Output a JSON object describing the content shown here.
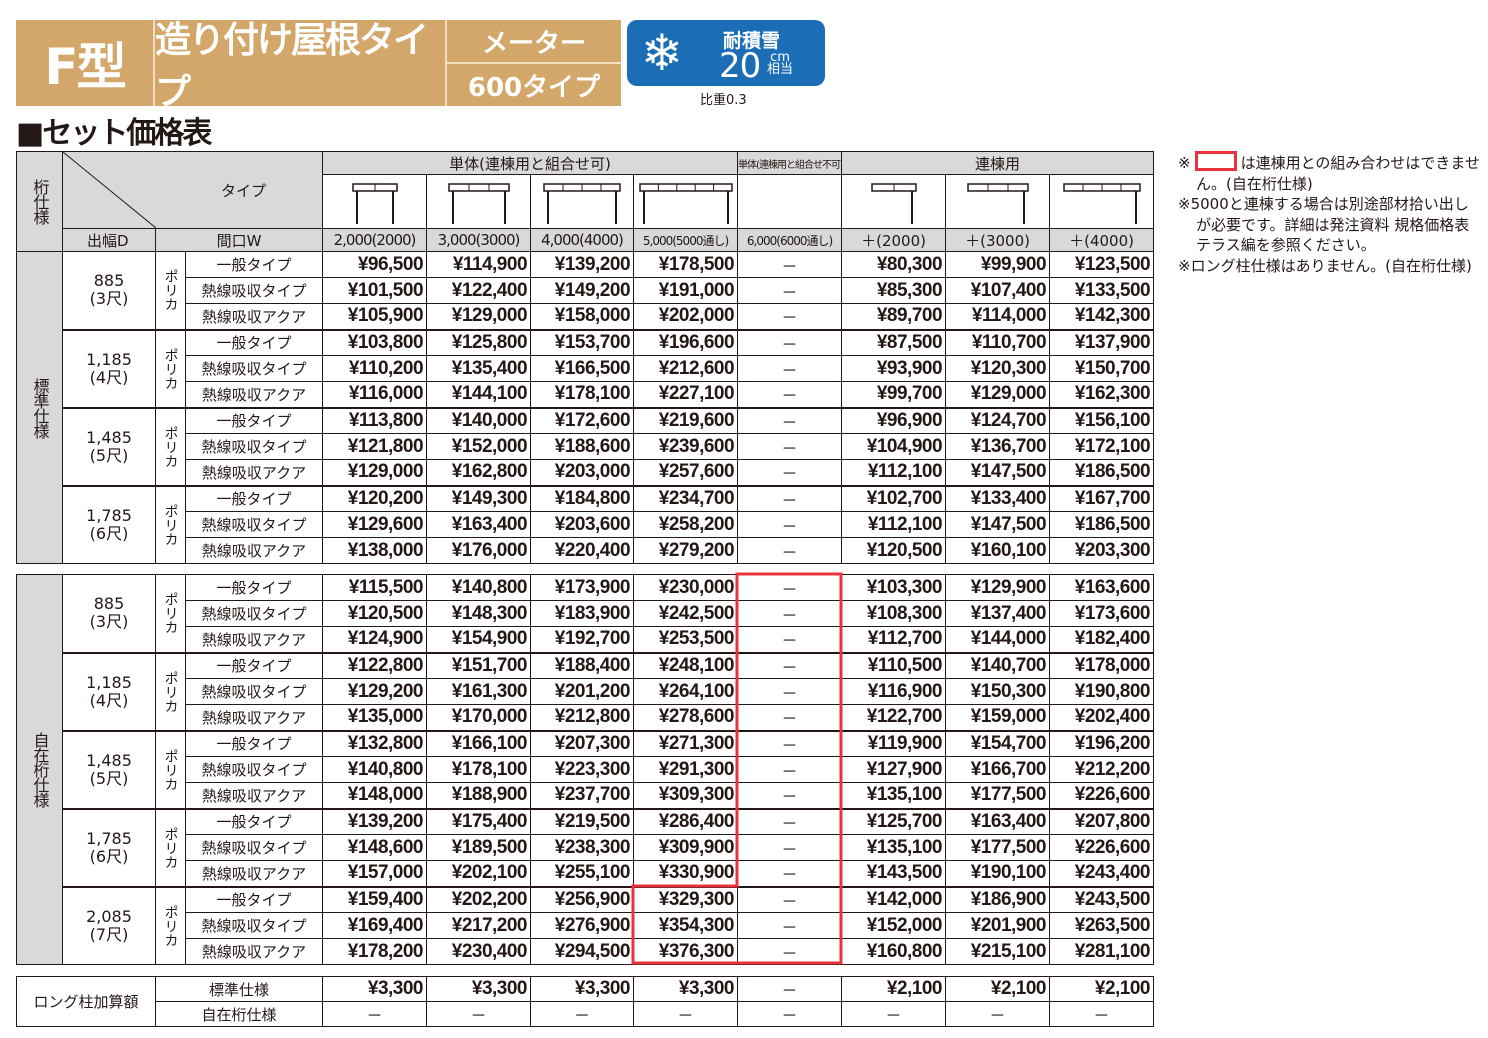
{
  "header": {
    "type_label": "F型",
    "title": "造り付け屋根タイプ",
    "meter": "メーター",
    "subtype": "600タイプ",
    "snow": {
      "icon": "snowflake-icon",
      "label": "耐積雪",
      "value": "20",
      "unit": "cm",
      "unit_note": "相当",
      "color": "#1b6db5"
    },
    "gravity": "比重0.3",
    "color": "#d3a769"
  },
  "section_title": "■セット価格表",
  "table": {
    "spec_header": "桁仕様",
    "type_header": "タイプ",
    "depth_header": "出幅D",
    "width_header": "間口W",
    "groups": [
      "単体(連棟用と組合せ可)",
      "単体(連棟用と組合せ不可)",
      "連棟用"
    ],
    "widths": [
      "2,000(2000)",
      "3,000(3000)",
      "4,000(4000)",
      "5,000(5000通し)",
      "6,000(6000通し)",
      "＋(2000)",
      "＋(3000)",
      "＋(4000)"
    ],
    "material": "ポリカ",
    "type_names": [
      "一般タイプ",
      "熱線吸収タイプ",
      "熱線吸収アクア"
    ],
    "dash": "－",
    "sections": [
      {
        "label": "標準仕様",
        "rows": [
          {
            "depth": "885",
            "shaku": "(3尺)",
            "prices": [
              [
                "¥96,500",
                "¥114,900",
                "¥139,200",
                "¥178,500",
                "－",
                "¥80,300",
                "¥99,900",
                "¥123,500"
              ],
              [
                "¥101,500",
                "¥122,400",
                "¥149,200",
                "¥191,000",
                "－",
                "¥85,300",
                "¥107,400",
                "¥133,500"
              ],
              [
                "¥105,900",
                "¥129,000",
                "¥158,000",
                "¥202,000",
                "－",
                "¥89,700",
                "¥114,000",
                "¥142,300"
              ]
            ]
          },
          {
            "depth": "1,185",
            "shaku": "(4尺)",
            "prices": [
              [
                "¥103,800",
                "¥125,800",
                "¥153,700",
                "¥196,600",
                "－",
                "¥87,500",
                "¥110,700",
                "¥137,900"
              ],
              [
                "¥110,200",
                "¥135,400",
                "¥166,500",
                "¥212,600",
                "－",
                "¥93,900",
                "¥120,300",
                "¥150,700"
              ],
              [
                "¥116,000",
                "¥144,100",
                "¥178,100",
                "¥227,100",
                "－",
                "¥99,700",
                "¥129,000",
                "¥162,300"
              ]
            ]
          },
          {
            "depth": "1,485",
            "shaku": "(5尺)",
            "prices": [
              [
                "¥113,800",
                "¥140,000",
                "¥172,600",
                "¥219,600",
                "－",
                "¥96,900",
                "¥124,700",
                "¥156,100"
              ],
              [
                "¥121,800",
                "¥152,000",
                "¥188,600",
                "¥239,600",
                "－",
                "¥104,900",
                "¥136,700",
                "¥172,100"
              ],
              [
                "¥129,000",
                "¥162,800",
                "¥203,000",
                "¥257,600",
                "－",
                "¥112,100",
                "¥147,500",
                "¥186,500"
              ]
            ]
          },
          {
            "depth": "1,785",
            "shaku": "(6尺)",
            "prices": [
              [
                "¥120,200",
                "¥149,300",
                "¥184,800",
                "¥234,700",
                "－",
                "¥102,700",
                "¥133,400",
                "¥167,700"
              ],
              [
                "¥129,600",
                "¥163,400",
                "¥203,600",
                "¥258,200",
                "－",
                "¥112,100",
                "¥147,500",
                "¥186,500"
              ],
              [
                "¥138,000",
                "¥176,000",
                "¥220,400",
                "¥279,200",
                "－",
                "¥120,500",
                "¥160,100",
                "¥203,300"
              ]
            ]
          }
        ]
      },
      {
        "label": "自在桁仕様",
        "rows": [
          {
            "depth": "885",
            "shaku": "(3尺)",
            "prices": [
              [
                "¥115,500",
                "¥140,800",
                "¥173,900",
                "¥230,000",
                "－",
                "¥103,300",
                "¥129,900",
                "¥163,600"
              ],
              [
                "¥120,500",
                "¥148,300",
                "¥183,900",
                "¥242,500",
                "－",
                "¥108,300",
                "¥137,400",
                "¥173,600"
              ],
              [
                "¥124,900",
                "¥154,900",
                "¥192,700",
                "¥253,500",
                "－",
                "¥112,700",
                "¥144,000",
                "¥182,400"
              ]
            ]
          },
          {
            "depth": "1,185",
            "shaku": "(4尺)",
            "prices": [
              [
                "¥122,800",
                "¥151,700",
                "¥188,400",
                "¥248,100",
                "－",
                "¥110,500",
                "¥140,700",
                "¥178,000"
              ],
              [
                "¥129,200",
                "¥161,300",
                "¥201,200",
                "¥264,100",
                "－",
                "¥116,900",
                "¥150,300",
                "¥190,800"
              ],
              [
                "¥135,000",
                "¥170,000",
                "¥212,800",
                "¥278,600",
                "－",
                "¥122,700",
                "¥159,000",
                "¥202,400"
              ]
            ]
          },
          {
            "depth": "1,485",
            "shaku": "(5尺)",
            "prices": [
              [
                "¥132,800",
                "¥166,100",
                "¥207,300",
                "¥271,300",
                "－",
                "¥119,900",
                "¥154,700",
                "¥196,200"
              ],
              [
                "¥140,800",
                "¥178,100",
                "¥223,300",
                "¥291,300",
                "－",
                "¥127,900",
                "¥166,700",
                "¥212,200"
              ],
              [
                "¥148,000",
                "¥188,900",
                "¥237,700",
                "¥309,300",
                "－",
                "¥135,100",
                "¥177,500",
                "¥226,600"
              ]
            ]
          },
          {
            "depth": "1,785",
            "shaku": "(6尺)",
            "prices": [
              [
                "¥139,200",
                "¥175,400",
                "¥219,500",
                "¥286,400",
                "－",
                "¥125,700",
                "¥163,400",
                "¥207,800"
              ],
              [
                "¥148,600",
                "¥189,500",
                "¥238,300",
                "¥309,900",
                "－",
                "¥135,100",
                "¥177,500",
                "¥226,600"
              ],
              [
                "¥157,000",
                "¥202,100",
                "¥255,100",
                "¥330,900",
                "－",
                "¥143,500",
                "¥190,100",
                "¥243,400"
              ]
            ]
          },
          {
            "depth": "2,085",
            "shaku": "(7尺)",
            "prices": [
              [
                "¥159,400",
                "¥202,200",
                "¥256,900",
                "¥329,300",
                "－",
                "¥142,000",
                "¥186,900",
                "¥243,500"
              ],
              [
                "¥169,400",
                "¥217,200",
                "¥276,900",
                "¥354,300",
                "－",
                "¥152,000",
                "¥201,900",
                "¥263,500"
              ],
              [
                "¥178,200",
                "¥230,400",
                "¥294,500",
                "¥376,300",
                "－",
                "¥160,800",
                "¥215,100",
                "¥281,100"
              ]
            ]
          }
        ]
      }
    ],
    "long_pillar": {
      "label": "ロング柱加算額",
      "rows": [
        {
          "name": "標準仕様",
          "prices": [
            "¥3,300",
            "¥3,300",
            "¥3,300",
            "¥3,300",
            "－",
            "¥2,100",
            "¥2,100",
            "¥2,100"
          ]
        },
        {
          "name": "自在桁仕様",
          "prices": [
            "－",
            "－",
            "－",
            "－",
            "－",
            "－",
            "－",
            "－"
          ]
        }
      ]
    },
    "highlight_color": "#e8333c"
  },
  "notes": {
    "note1_mark": "※",
    "note1": "は連棟用との組み合わせはできません。(自在桁仕様)",
    "note2": "※5000と連棟する場合は別途部材拾い出しが必要です。詳細は発注資料 規格価格表 テラス編を参照ください。",
    "note3": "※ロング柱仕様はありません。(自在桁仕様)"
  }
}
